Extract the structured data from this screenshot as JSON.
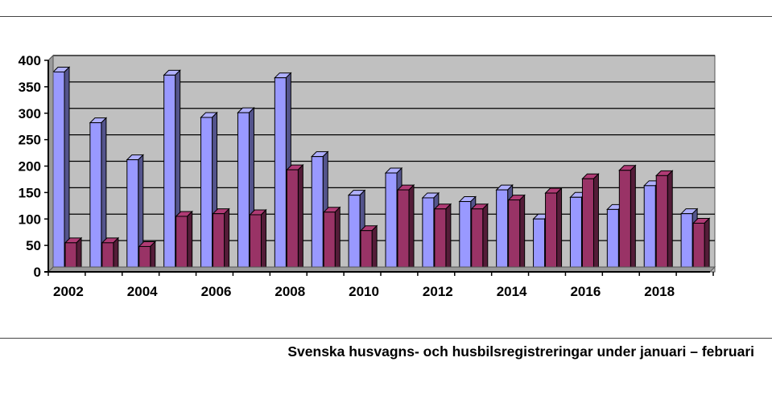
{
  "caption": "Svenska husvagns- och husbilsregistreringar under januari – februari",
  "chart_data": {
    "type": "bar",
    "categories": [
      "2002",
      "2003",
      "2004",
      "2005",
      "2006",
      "2007",
      "2008",
      "2009",
      "2010",
      "2011",
      "2012",
      "2013",
      "2014",
      "2015",
      "2016",
      "2017",
      "2018",
      "2019"
    ],
    "x_tick_labels": [
      "2002",
      "2004",
      "2006",
      "2008",
      "2010",
      "2012",
      "2014",
      "2016",
      "2018"
    ],
    "y_tick_labels": [
      "0",
      "50",
      "100",
      "150",
      "200",
      "250",
      "300",
      "350",
      "400"
    ],
    "ylim": [
      0,
      400
    ],
    "grid": true,
    "legend": "none",
    "series": [
      {
        "color": "#9999ff",
        "values": [
          378,
          282,
          212,
          372,
          292,
          301,
          367,
          218,
          145,
          187,
          140,
          133,
          155,
          100,
          141,
          118,
          163,
          110
        ]
      },
      {
        "color": "#993366",
        "values": [
          55,
          55,
          48,
          105,
          110,
          108,
          193,
          113,
          78,
          155,
          119,
          119,
          136,
          149,
          176,
          192,
          182,
          92
        ]
      }
    ],
    "plot_background": "#c0c0c0"
  }
}
